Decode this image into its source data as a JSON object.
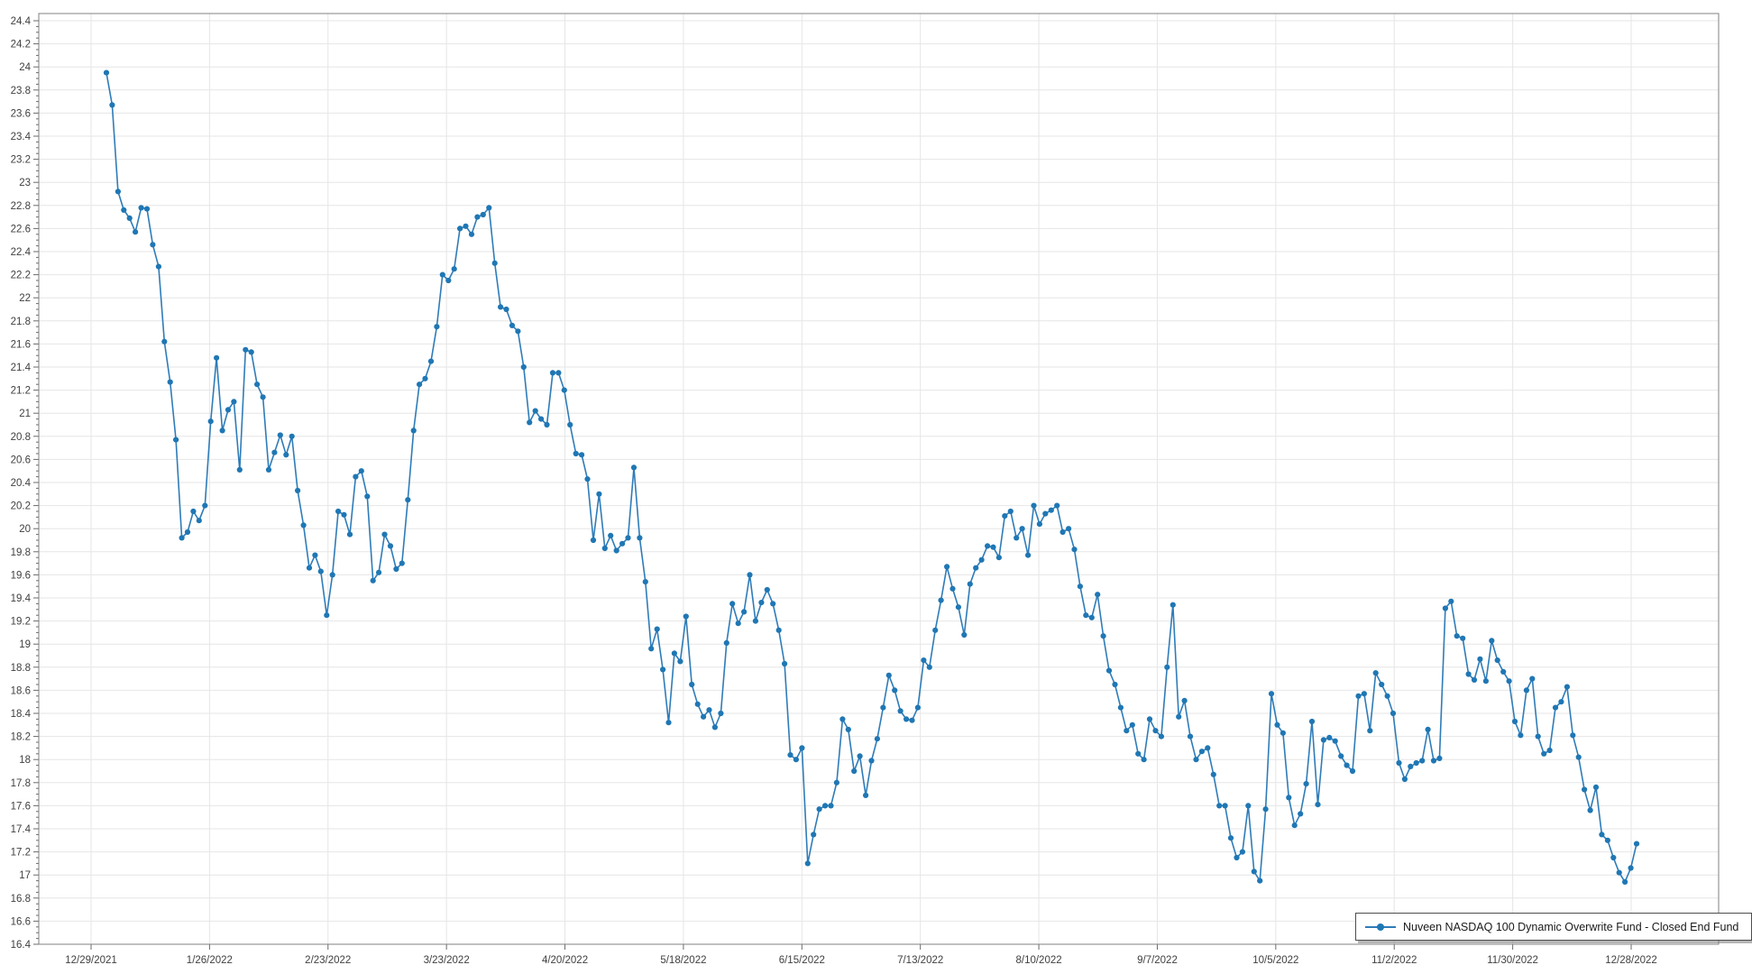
{
  "legend": {
    "label": "Nuveen NASDAQ 100 Dynamic Overwrite Fund - Closed End Fund"
  },
  "colors": {
    "line": "#2f7cb8",
    "marker": "#1f77b4",
    "grid": "#e6e6e6",
    "plot_border": "#808080",
    "axis_line": "#696969",
    "tick_label": "#404040",
    "background": "#ffffff"
  },
  "chart_data": {
    "type": "line",
    "title": "",
    "xlabel": "",
    "ylabel": "",
    "ylim": [
      16.4,
      24.4
    ],
    "y_tick_step": 0.2,
    "y_minor_tick_step": 0.05,
    "grid": true,
    "legend_position": "bottom-right",
    "x_tick_labels": [
      "12/29/2021",
      "1/26/2022",
      "2/23/2022",
      "3/23/2022",
      "4/20/2022",
      "5/18/2022",
      "6/15/2022",
      "7/13/2022",
      "8/10/2022",
      "9/7/2022",
      "10/5/2022",
      "11/2/2022",
      "11/30/2022",
      "12/28/2022"
    ],
    "series": [
      {
        "name": "Nuveen NASDAQ 100 Dynamic Overwrite Fund - Closed End Fund",
        "marker": "circle",
        "values": [
          23.95,
          23.67,
          22.92,
          22.76,
          22.69,
          22.57,
          22.78,
          22.77,
          22.46,
          22.27,
          21.62,
          21.27,
          20.77,
          19.92,
          19.97,
          20.15,
          20.07,
          20.2,
          20.93,
          21.48,
          20.85,
          21.03,
          21.1,
          20.51,
          21.55,
          21.53,
          21.25,
          21.14,
          20.51,
          20.66,
          20.81,
          20.64,
          20.8,
          20.33,
          20.03,
          19.66,
          19.77,
          19.63,
          19.25,
          19.6,
          20.15,
          20.12,
          19.95,
          20.45,
          20.5,
          20.28,
          19.55,
          19.62,
          19.95,
          19.85,
          19.65,
          19.7,
          20.25,
          20.85,
          21.25,
          21.3,
          21.45,
          21.75,
          22.2,
          22.15,
          22.25,
          22.6,
          22.62,
          22.55,
          22.7,
          22.72,
          22.78,
          22.3,
          21.92,
          21.9,
          21.76,
          21.71,
          21.4,
          20.92,
          21.02,
          20.95,
          20.9,
          21.35,
          21.35,
          21.2,
          20.9,
          20.65,
          20.64,
          20.43,
          19.9,
          20.3,
          19.83,
          19.94,
          19.81,
          19.87,
          19.92,
          20.53,
          19.92,
          19.54,
          18.96,
          19.13,
          18.78,
          18.32,
          18.92,
          18.85,
          19.24,
          18.65,
          18.48,
          18.37,
          18.43,
          18.28,
          18.4,
          19.01,
          19.35,
          19.18,
          19.28,
          19.6,
          19.2,
          19.36,
          19.47,
          19.35,
          19.12,
          18.83,
          18.04,
          18.0,
          18.1,
          17.1,
          17.35,
          17.57,
          17.6,
          17.6,
          17.8,
          18.35,
          18.26,
          17.9,
          18.03,
          17.69,
          17.99,
          18.18,
          18.45,
          18.73,
          18.6,
          18.42,
          18.35,
          18.34,
          18.45,
          18.86,
          18.8,
          19.12,
          19.38,
          19.67,
          19.48,
          19.32,
          19.08,
          19.52,
          19.66,
          19.73,
          19.85,
          19.84,
          19.75,
          20.11,
          20.15,
          19.92,
          20.0,
          19.77,
          20.2,
          20.04,
          20.13,
          20.16,
          20.2,
          19.97,
          20.0,
          19.82,
          19.5,
          19.25,
          19.23,
          19.43,
          19.07,
          18.77,
          18.65,
          18.45,
          18.25,
          18.3,
          18.05,
          18.0,
          18.35,
          18.25,
          18.2,
          18.8,
          19.34,
          18.37,
          18.51,
          18.2,
          18.0,
          18.07,
          18.1,
          17.87,
          17.6,
          17.6,
          17.32,
          17.15,
          17.2,
          17.6,
          17.03,
          16.95,
          17.57,
          18.57,
          18.3,
          18.23,
          17.67,
          17.43,
          17.53,
          17.79,
          18.33,
          17.61,
          18.17,
          18.19,
          18.16,
          18.03,
          17.95,
          17.9,
          18.55,
          18.57,
          18.25,
          18.75,
          18.65,
          18.55,
          18.4,
          17.97,
          17.83,
          17.94,
          17.97,
          17.99,
          18.26,
          17.99,
          18.01,
          19.31,
          19.37,
          19.07,
          19.05,
          18.74,
          18.69,
          18.87,
          18.68,
          19.03,
          18.86,
          18.76,
          18.68,
          18.33,
          18.21,
          18.6,
          18.7,
          18.2,
          18.05,
          18.08,
          18.45,
          18.5,
          18.63,
          18.21,
          18.02,
          17.74,
          17.56,
          17.76,
          17.35,
          17.3,
          17.15,
          17.02,
          16.94,
          17.06,
          17.27
        ]
      }
    ]
  }
}
